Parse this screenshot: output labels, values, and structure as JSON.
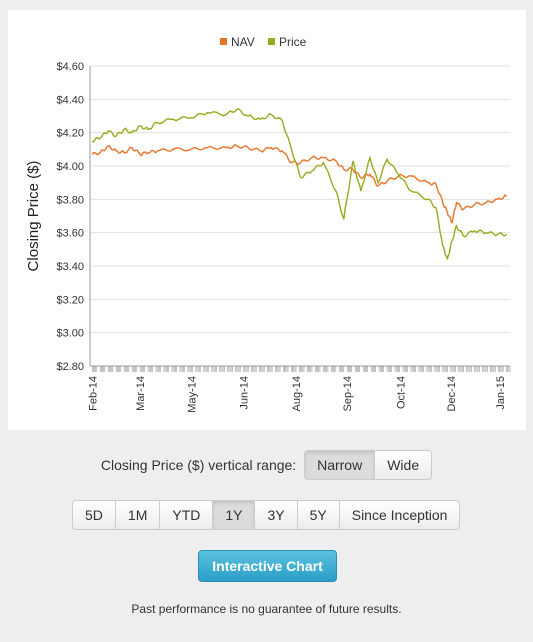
{
  "chart_data": {
    "type": "line",
    "ylabel": "Closing Price ($)",
    "ylim": [
      2.8,
      4.6
    ],
    "yticks": [
      "$4.60",
      "$4.40",
      "$4.20",
      "$4.00",
      "$3.80",
      "$3.60",
      "$3.40",
      "$3.20",
      "$3.00",
      "$2.80"
    ],
    "grid": true,
    "legend_position": "top-center",
    "x_tick_labels": [
      "Feb-14",
      "Mar-14",
      "May-14",
      "Jun-14",
      "Aug-14",
      "Sep-14",
      "Oct-14",
      "Dec-14",
      "Jan-15"
    ],
    "series": [
      {
        "name": "NAV",
        "color": "#e8742a",
        "x": [
          "2014-02-03",
          "2014-02-10",
          "2014-02-17",
          "2014-02-24",
          "2014-03-03",
          "2014-03-10",
          "2014-03-17",
          "2014-03-24",
          "2014-04-01",
          "2014-04-15",
          "2014-05-01",
          "2014-05-15",
          "2014-06-01",
          "2014-06-10",
          "2014-06-20",
          "2014-07-01",
          "2014-07-10",
          "2014-07-20",
          "2014-07-28",
          "2014-08-05",
          "2014-08-15",
          "2014-08-25",
          "2014-09-05",
          "2014-09-12",
          "2014-09-20",
          "2014-09-27",
          "2014-10-05",
          "2014-10-12",
          "2014-10-20",
          "2014-10-30",
          "2014-11-10",
          "2014-11-25",
          "2014-12-02",
          "2014-12-08",
          "2014-12-12",
          "2014-12-16",
          "2014-12-20",
          "2014-12-26",
          "2015-01-05",
          "2015-01-15",
          "2015-01-25",
          "2015-02-02"
        ],
        "values": [
          4.07,
          4.08,
          4.12,
          4.09,
          4.08,
          4.11,
          4.07,
          4.08,
          4.09,
          4.1,
          4.1,
          4.11,
          4.11,
          4.12,
          4.11,
          4.09,
          4.11,
          4.09,
          4.02,
          4.02,
          4.05,
          4.05,
          4.03,
          3.98,
          3.98,
          3.93,
          3.95,
          3.88,
          3.91,
          3.94,
          3.94,
          3.9,
          3.89,
          3.78,
          3.72,
          3.66,
          3.78,
          3.74,
          3.77,
          3.78,
          3.8,
          3.82
        ]
      },
      {
        "name": "Price",
        "color": "#9aaa1e",
        "x": [
          "2014-02-03",
          "2014-02-10",
          "2014-02-17",
          "2014-02-24",
          "2014-03-03",
          "2014-03-10",
          "2014-03-17",
          "2014-03-24",
          "2014-04-01",
          "2014-04-15",
          "2014-05-01",
          "2014-05-15",
          "2014-06-01",
          "2014-06-10",
          "2014-06-20",
          "2014-07-01",
          "2014-07-10",
          "2014-07-20",
          "2014-07-28",
          "2014-08-05",
          "2014-08-15",
          "2014-08-25",
          "2014-09-05",
          "2014-09-12",
          "2014-09-20",
          "2014-09-27",
          "2014-10-05",
          "2014-10-12",
          "2014-10-20",
          "2014-10-30",
          "2014-11-10",
          "2014-11-25",
          "2014-12-02",
          "2014-12-08",
          "2014-12-12",
          "2014-12-16",
          "2014-12-20",
          "2014-12-26",
          "2015-01-05",
          "2015-01-15",
          "2015-01-25",
          "2015-02-02"
        ],
        "values": [
          4.15,
          4.17,
          4.21,
          4.18,
          4.22,
          4.2,
          4.24,
          4.22,
          4.26,
          4.28,
          4.29,
          4.32,
          4.31,
          4.34,
          4.3,
          4.28,
          4.31,
          4.27,
          4.1,
          3.93,
          3.97,
          4.02,
          3.85,
          3.68,
          4.03,
          3.85,
          4.05,
          3.9,
          4.04,
          3.95,
          3.85,
          3.8,
          3.75,
          3.52,
          3.44,
          3.55,
          3.64,
          3.58,
          3.61,
          3.6,
          3.59,
          3.59
        ]
      }
    ]
  },
  "controls": {
    "range_label": "Closing Price ($) vertical range:",
    "range_options": [
      "Narrow",
      "Wide"
    ],
    "range_selected": "Narrow",
    "period_options": [
      "5D",
      "1M",
      "YTD",
      "1Y",
      "3Y",
      "5Y",
      "Since Inception"
    ],
    "period_selected": "1Y",
    "interactive_chart_label": "Interactive Chart"
  },
  "footer": {
    "disclaimer": "Past performance is no guarantee of future results."
  }
}
